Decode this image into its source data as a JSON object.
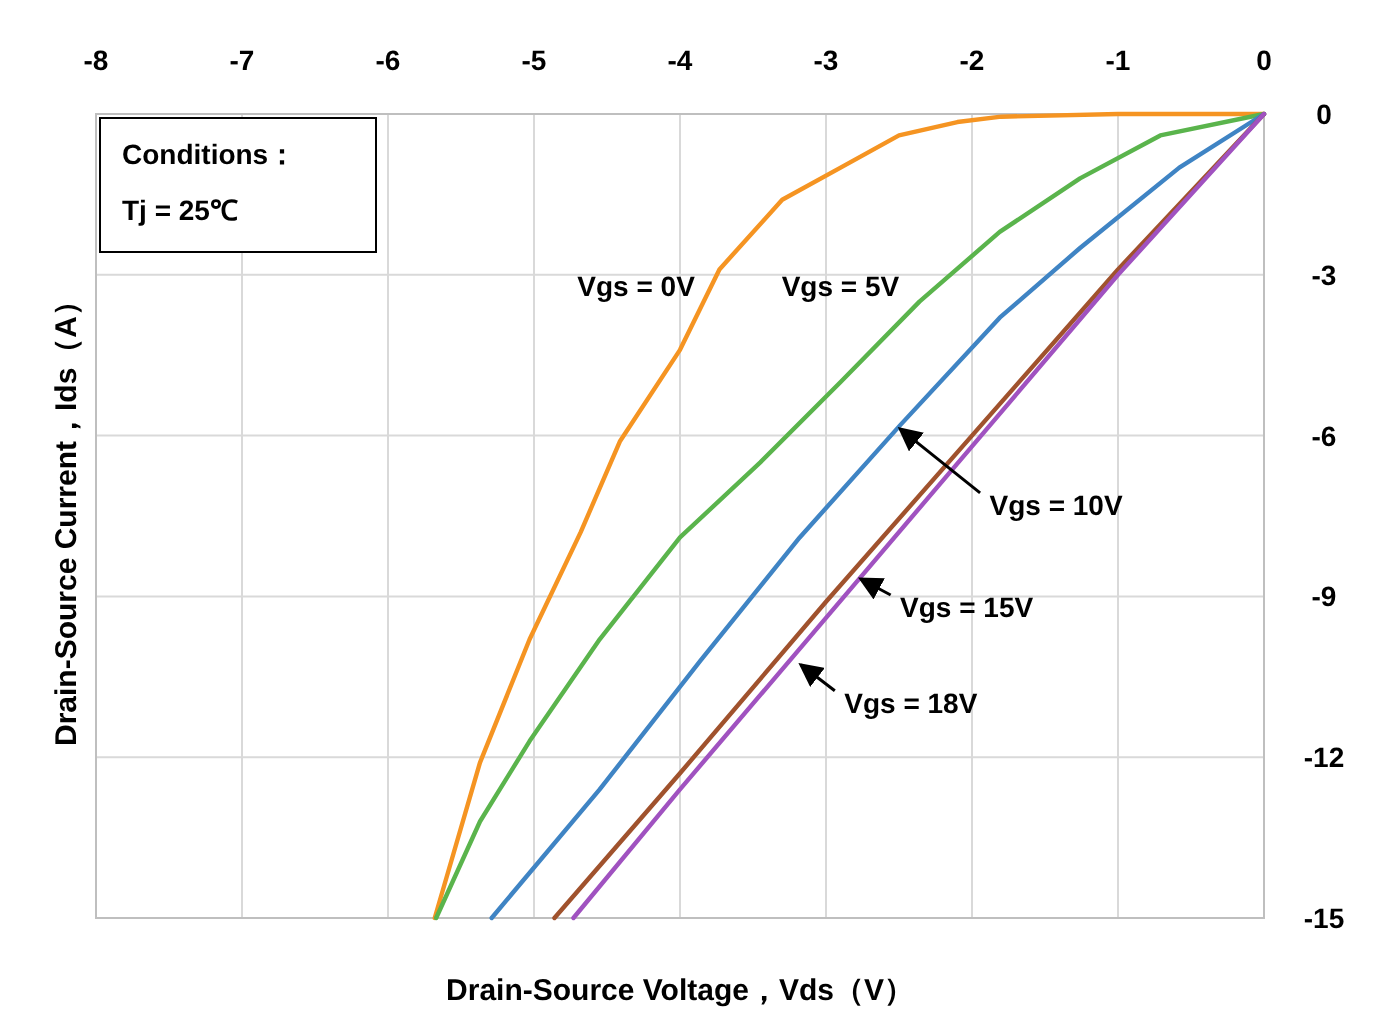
{
  "chart_data": {
    "type": "line",
    "xlabel": "Drain-Source Voltage，Vds（V）",
    "ylabel": "Drain-Source Current，Ids（A）",
    "xlim": [
      -8,
      0
    ],
    "xticks": [
      -8,
      -7,
      -6,
      -5,
      -4,
      -3,
      -2,
      -1,
      0
    ],
    "ylim": [
      -15,
      0
    ],
    "yticks": [
      0,
      -3,
      -6,
      -9,
      -12,
      -15
    ],
    "grid": true,
    "series": [
      {
        "color": "#f59422",
        "x": [
          0,
          -1,
          -1.8,
          -2.1,
          -2.5,
          -2.9,
          -3.3,
          -3.73,
          -4.0,
          -4.41,
          -4.68,
          -5.03,
          -5.37,
          -5.68
        ],
        "values": [
          0,
          0,
          -0.05,
          -0.15,
          -0.4,
          -1.0,
          -1.6,
          -2.9,
          -4.4,
          -6.1,
          -7.8,
          -9.8,
          -12.1,
          -15
        ]
      },
      {
        "color": "#5ab44c",
        "x": [
          0,
          -0.71,
          -1.26,
          -1.81,
          -2.36,
          -2.9,
          -3.45,
          -4.0,
          -4.55,
          -5.03,
          -5.37,
          -5.67
        ],
        "values": [
          0,
          -0.4,
          -1.2,
          -2.2,
          -3.5,
          -5.0,
          -6.5,
          -7.9,
          -9.8,
          -11.7,
          -13.2,
          -15
        ]
      },
      {
        "color": "#3f84c4",
        "x": [
          0,
          -0.58,
          -1.26,
          -1.81,
          -2.49,
          -3.18,
          -3.86,
          -4.55,
          -5.29
        ],
        "values": [
          0,
          -1.0,
          -2.5,
          -3.8,
          -5.8,
          -7.9,
          -10.2,
          -12.6,
          -15
        ]
      },
      {
        "color": "#a0522d",
        "x": [
          0,
          -1,
          -2,
          -3,
          -4,
          -4.86
        ],
        "values": [
          0,
          -2.9,
          -6.0,
          -9.1,
          -12.3,
          -15
        ]
      },
      {
        "color": "#a052c0",
        "x": [
          0,
          -1,
          -2,
          -3,
          -4,
          -4.73
        ],
        "values": [
          0,
          -3.0,
          -6.2,
          -9.4,
          -12.6,
          -15
        ]
      }
    ],
    "annotations": [
      "Conditions：",
      "Tj = 25℃",
      {
        "text": "Vgs = 0V",
        "x": -3.78,
        "y": -3.2
      },
      {
        "text": "Vgs = 5V",
        "x": -2.23,
        "y": -3.2
      },
      {
        "text": "Vgs = 10V",
        "x": -2.52,
        "y": -5.8
      },
      {
        "text": "Vgs = 15V",
        "x": -2.79,
        "y": -8.6
      },
      {
        "text": "Vgs = 18V",
        "x": -3.2,
        "y": -10.2
      }
    ]
  }
}
